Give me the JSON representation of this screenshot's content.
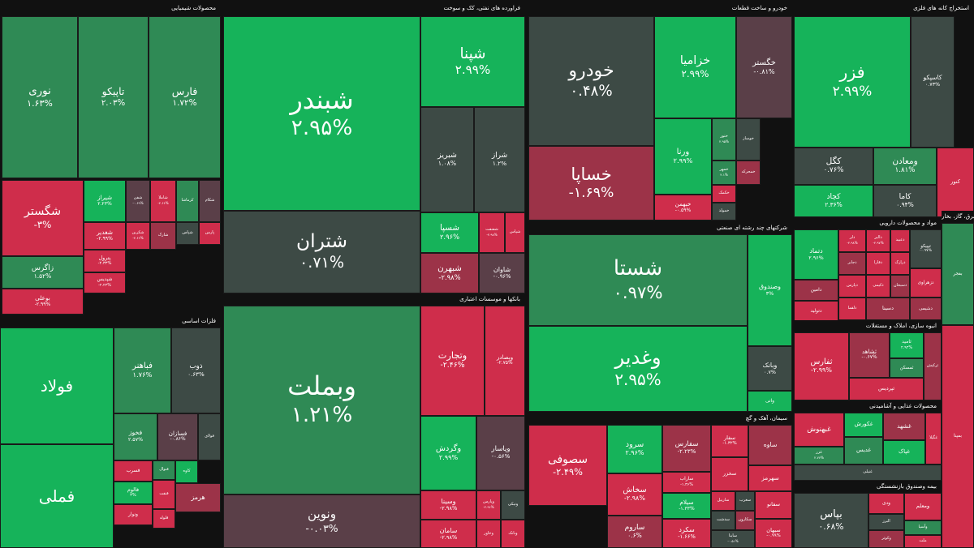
{
  "colors": {
    "strong_up": "#16b35a",
    "mid_up": "#2f8a55",
    "flat": "#3d4a45",
    "flat_down": "#5a3f48",
    "mid_down": "#9c3348",
    "strong_down": "#cf2d4b"
  },
  "chart_data": {
    "type": "treemap",
    "sectors": [
      {
        "name": "محصولات شیمیایی",
        "tiles": [
          {
            "symbol": "نوری",
            "change": "۱.۶۳%",
            "level": "mid_up"
          },
          {
            "symbol": "تاپیکو",
            "change": "۲.۰۳%",
            "level": "mid_up"
          },
          {
            "symbol": "فارس",
            "change": "۱.۷۲%",
            "level": "mid_up"
          },
          {
            "symbol": "شگستر",
            "change": "-۳%",
            "level": "strong_down"
          },
          {
            "symbol": "زاگرس",
            "change": "۱.۵۲%",
            "level": "mid_up"
          },
          {
            "symbol": "بوعلی",
            "change": "-۲.۹۹%",
            "level": "strong_down"
          },
          {
            "symbol": "شیراز",
            "change": "۲.۲۳%",
            "level": "strong_up"
          },
          {
            "symbol": "شغدیر",
            "change": "-۲.۹۹%",
            "level": "strong_down"
          },
          {
            "symbol": "پترول",
            "change": "-۲.۳۳%",
            "level": "strong_down"
          },
          {
            "symbol": "شپدیس",
            "change": "-۲.۲۳%",
            "level": "strong_down"
          },
          {
            "symbol": "شفن",
            "change": "-۰.۶۹%",
            "level": "flat_down"
          },
          {
            "symbol": "شکربن",
            "change": "-۲.۶۶%",
            "level": "strong_down"
          },
          {
            "symbol": "شاملا",
            "change": "-۲.۶۶%",
            "level": "strong_down"
          },
          {
            "symbol": "کرماشا",
            "change": "",
            "level": "mid_up"
          },
          {
            "symbol": "شکام",
            "change": "",
            "level": "flat_down"
          },
          {
            "symbol": "شپاس",
            "change": "",
            "level": "flat"
          },
          {
            "symbol": "پارس",
            "change": "",
            "level": "strong_down"
          },
          {
            "symbol": "شارک",
            "change": "",
            "level": "mid_down"
          }
        ]
      },
      {
        "name": "فراورده های نفتی، کک و سوخت",
        "tiles": [
          {
            "symbol": "شبندر",
            "change": "۲.۹۵%",
            "level": "strong_up"
          },
          {
            "symbol": "شپنا",
            "change": "۲.۹۹%",
            "level": "strong_up"
          },
          {
            "symbol": "شتران",
            "change": "۰.۷۱%",
            "level": "flat"
          },
          {
            "symbol": "شبریز",
            "change": "۱.۰۸%",
            "level": "flat"
          },
          {
            "symbol": "شراز",
            "change": "۱.۲%",
            "level": "flat"
          },
          {
            "symbol": "شسپا",
            "change": "۲.۹۶%",
            "level": "strong_up"
          },
          {
            "symbol": "شفنفت",
            "change": "-۲.۹۸%",
            "level": "strong_down"
          },
          {
            "symbol": "شپاس",
            "change": "",
            "level": "strong_down"
          },
          {
            "symbol": "شبهرن",
            "change": "-۲.۹۸%",
            "level": "mid_down"
          },
          {
            "symbol": "شاوان",
            "change": "-۰.۹۶%",
            "level": "flat_down"
          }
        ]
      },
      {
        "name": "خودرو و ساخت قطعات",
        "tiles": [
          {
            "symbol": "خودرو",
            "change": "۰.۴۸%",
            "level": "flat"
          },
          {
            "symbol": "خزامیا",
            "change": "۲.۹۹%",
            "level": "strong_up"
          },
          {
            "symbol": "خگستر",
            "change": "-۰.۸۱%",
            "level": "flat_down"
          },
          {
            "symbol": "خساپا",
            "change": "-۱.۶۹%",
            "level": "mid_down"
          },
          {
            "symbol": "ورنا",
            "change": "۲.۹۹%",
            "level": "strong_up"
          },
          {
            "symbol": "ختور",
            "change": "۲.۹۵%",
            "level": "mid_up"
          },
          {
            "symbol": "خوساز",
            "change": "",
            "level": "flat"
          },
          {
            "symbol": "خمهر",
            "change": "۲.۱%",
            "level": "mid_up"
          },
          {
            "symbol": "خمحرکه",
            "change": "",
            "level": "mid_down"
          },
          {
            "symbol": "خکمک",
            "change": "",
            "level": "strong_down"
          },
          {
            "symbol": "خبهمن",
            "change": "-۰.۵۹%",
            "level": "strong_down"
          },
          {
            "symbol": "خمولد",
            "change": "",
            "level": "flat"
          }
        ]
      },
      {
        "name": "استخراج کانه های فلزی",
        "tiles": [
          {
            "symbol": "فزر",
            "change": "۲.۹۹%",
            "level": "strong_up"
          },
          {
            "symbol": "کاسپکو",
            "change": "۰.۷۳%",
            "level": "flat"
          },
          {
            "symbol": "کگل",
            "change": "۰.۷۶%",
            "level": "flat"
          },
          {
            "symbol": "ومعادن",
            "change": "۱.۸۱%",
            "level": "mid_up"
          },
          {
            "symbol": "کچاد",
            "change": "۲.۳۶%",
            "level": "strong_up"
          },
          {
            "symbol": "کاما",
            "change": "۰.۹۴%",
            "level": "flat"
          },
          {
            "symbol": "کنور",
            "change": "",
            "level": "strong_down"
          }
        ]
      },
      {
        "name": "فلزات اساسی",
        "tiles": [
          {
            "symbol": "فولاد",
            "change": "",
            "level": "strong_up"
          },
          {
            "symbol": "فباهنر",
            "change": "۱.۷۶%",
            "level": "mid_up"
          },
          {
            "symbol": "ذوب",
            "change": "۰.۶۳%",
            "level": "flat"
          },
          {
            "symbol": "فملی",
            "change": "",
            "level": "strong_up"
          },
          {
            "symbol": "فخوز",
            "change": "۲.۵۷%",
            "level": "mid_up"
          },
          {
            "symbol": "فسازان",
            "change": "-۰.۸۶%",
            "level": "flat_down"
          },
          {
            "symbol": "فولای",
            "change": "",
            "level": "flat"
          },
          {
            "symbol": "فسرب",
            "change": "",
            "level": "strong_down"
          },
          {
            "symbol": "فنوال",
            "change": "",
            "level": "mid_up"
          },
          {
            "symbol": "کاوه",
            "change": "",
            "level": "strong_up"
          },
          {
            "symbol": "فالوم",
            "change": "۳%",
            "level": "strong_up"
          },
          {
            "symbol": "ونوار",
            "change": "",
            "level": "strong_down"
          },
          {
            "symbol": "فنفت",
            "change": "",
            "level": "strong_down"
          },
          {
            "symbol": "فلوله",
            "change": "",
            "level": "strong_down"
          },
          {
            "symbol": "هرمز",
            "change": "",
            "level": "mid_down"
          }
        ]
      },
      {
        "name": "بانکها و موسسات اعتباری",
        "tiles": [
          {
            "symbol": "وبملت",
            "change": "۱.۲۱%",
            "level": "mid_up"
          },
          {
            "symbol": "وتجارت",
            "change": "-۲.۴۶%",
            "level": "strong_down"
          },
          {
            "symbol": "وبصادر",
            "change": "-۲.۷۵%",
            "level": "strong_down"
          },
          {
            "symbol": "ونوین",
            "change": "-۰.۰۳%",
            "level": "flat_down"
          },
          {
            "symbol": "وگردش",
            "change": "۲.۹۹%",
            "level": "strong_up"
          },
          {
            "symbol": "وپاسار",
            "change": "-۰.۵۶%",
            "level": "flat_down"
          },
          {
            "symbol": "وسینا",
            "change": "-۲.۹۸%",
            "level": "strong_down"
          },
          {
            "symbol": "وپارس",
            "change": "-۲.۹۶%",
            "level": "strong_down"
          },
          {
            "symbol": "ونیکی",
            "change": "",
            "level": "flat"
          },
          {
            "symbol": "سامان",
            "change": "-۲.۹۸%",
            "level": "strong_down"
          },
          {
            "symbol": "وخاور",
            "change": "",
            "level": "strong_down"
          },
          {
            "symbol": "وبانک",
            "change": "",
            "level": "strong_down"
          }
        ]
      },
      {
        "name": "شرکتهای چند رشته ای صنعتی",
        "tiles": [
          {
            "symbol": "شستا",
            "change": "۰.۹۷%",
            "level": "mid_up"
          },
          {
            "symbol": "وصندوق",
            "change": "۳%",
            "level": "strong_up"
          },
          {
            "symbol": "وغدیر",
            "change": "۲.۹۵%",
            "level": "strong_up"
          },
          {
            "symbol": "وبانک",
            "change": "۰.۷%",
            "level": "flat"
          },
          {
            "symbol": "واتی",
            "change": "",
            "level": "strong_up"
          }
        ]
      },
      {
        "name": "سیمان، آهک و گچ",
        "tiles": [
          {
            "symbol": "سصوفی",
            "change": "-۲.۴۹%",
            "level": "strong_down"
          },
          {
            "symbol": "سرود",
            "change": "۲.۹۶%",
            "level": "strong_up"
          },
          {
            "symbol": "سخاش",
            "change": "-۲.۹۸%",
            "level": "strong_down"
          },
          {
            "symbol": "ساروم",
            "change": "۰.۶%",
            "level": "mid_down"
          },
          {
            "symbol": "سفارس",
            "change": "-۲.۲۳%",
            "level": "mid_down"
          },
          {
            "symbol": "ساراب",
            "change": "-۱.۳۶%",
            "level": "strong_down"
          },
          {
            "symbol": "سفار",
            "change": "-۱.۳۲%",
            "level": "strong_down"
          },
          {
            "symbol": "سخزر",
            "change": "",
            "level": "strong_down"
          },
          {
            "symbol": "ساوه",
            "change": "",
            "level": "mid_down"
          },
          {
            "symbol": "سهرمز",
            "change": "",
            "level": "strong_down"
          },
          {
            "symbol": "سیلام",
            "change": "-۱.۳۳%",
            "level": "strong_up"
          },
          {
            "symbol": "سکرد",
            "change": "-۱.۶۶%",
            "level": "strong_down"
          },
          {
            "symbol": "ساربیل",
            "change": "",
            "level": "strong_down"
          },
          {
            "symbol": "سغرب",
            "change": "",
            "level": "flat"
          },
          {
            "symbol": "سفانو",
            "change": "",
            "level": "strong_down"
          },
          {
            "symbol": "سدشت",
            "change": "",
            "level": "flat"
          },
          {
            "symbol": "سکارون",
            "change": "",
            "level": "mid_down"
          },
          {
            "symbol": "ساینا",
            "change": "-۰.۵۱%",
            "level": "flat"
          },
          {
            "symbol": "سبهان",
            "change": "-۰.۹۹%",
            "level": "strong_down"
          }
        ]
      },
      {
        "name": "مواد و محصولات دارویی",
        "tiles": [
          {
            "symbol": "دتماد",
            "change": "۲.۹۶%",
            "level": "strong_up"
          },
          {
            "symbol": "دلر",
            "change": "-۲.۹۸%",
            "level": "strong_down"
          },
          {
            "symbol": "دالبر",
            "change": "-۲.۹۷%",
            "level": "strong_down"
          },
          {
            "symbol": "دعبید",
            "change": "",
            "level": "strong_down"
          },
          {
            "symbol": "تیپیکو",
            "change": "-۰.۹۷%",
            "level": "flat"
          },
          {
            "symbol": "دجابر",
            "change": "",
            "level": "mid_down"
          },
          {
            "symbol": "دفارا",
            "change": "",
            "level": "strong_down"
          },
          {
            "symbol": "درازک",
            "change": "",
            "level": "strong_down"
          },
          {
            "symbol": "دپارس",
            "change": "",
            "level": "strong_down"
          },
          {
            "symbol": "دکیمی",
            "change": "",
            "level": "strong_down"
          },
          {
            "symbol": "دسبحان",
            "change": "",
            "level": "mid_down"
          },
          {
            "symbol": "دامین",
            "change": "",
            "level": "mid_down"
          },
          {
            "symbol": "دزهراوی",
            "change": "",
            "level": "strong_down"
          },
          {
            "symbol": "دلقما",
            "change": "",
            "level": "strong_down"
          },
          {
            "symbol": "دسینا",
            "change": "",
            "level": "mid_down"
          },
          {
            "symbol": "دشیمی",
            "change": "",
            "level": "mid_down"
          },
          {
            "symbol": "دتولید",
            "change": "",
            "level": "strong_down"
          },
          {
            "symbol": "دکپسول",
            "change": "",
            "level": "flat"
          }
        ]
      },
      {
        "name": "انبوه سازی، املاک و مستغلات",
        "tiles": [
          {
            "symbol": "ثفارس",
            "change": "-۲.۹۹%",
            "level": "strong_down"
          },
          {
            "symbol": "ثشاهد",
            "change": "-۰.۶۷%",
            "level": "mid_down"
          },
          {
            "symbol": "ثامید",
            "change": "۲.۹۴%",
            "level": "strong_up"
          },
          {
            "symbol": "ثمسکن",
            "change": "",
            "level": "mid_up"
          },
          {
            "symbol": "ثرکیش",
            "change": "",
            "level": "mid_down"
          },
          {
            "symbol": "ثپردیس",
            "change": "",
            "level": "strong_down"
          }
        ]
      },
      {
        "name": "محصولات غذایی و آشامیدنی",
        "tiles": [
          {
            "symbol": "غبهنوش",
            "change": "",
            "level": "strong_down"
          },
          {
            "symbol": "غکورش",
            "change": "",
            "level": "strong_up"
          },
          {
            "symbol": "غزر",
            "change": "۲.۷۷%",
            "level": "mid_up"
          },
          {
            "symbol": "غدیس",
            "change": "",
            "level": "mid_up"
          },
          {
            "symbol": "غشهد",
            "change": "",
            "level": "mid_down"
          },
          {
            "symbol": "غپاک",
            "change": "",
            "level": "strong_up"
          },
          {
            "symbol": "غگیلا",
            "change": "",
            "level": "strong_down"
          },
          {
            "symbol": "غنیلی",
            "change": "",
            "level": "flat"
          }
        ]
      },
      {
        "name": "بیمه وصندوق بازنشستگی",
        "tiles": [
          {
            "symbol": "بپاس",
            "change": "۰.۶۸%",
            "level": "flat"
          },
          {
            "symbol": "ودی",
            "change": "",
            "level": "strong_down"
          },
          {
            "symbol": "البرز",
            "change": "",
            "level": "flat"
          },
          {
            "symbol": "وکوثر",
            "change": "",
            "level": "mid_down"
          },
          {
            "symbol": "ومعلم",
            "change": "",
            "level": "strong_down"
          },
          {
            "symbol": "وآسیا",
            "change": "",
            "level": "mid_up"
          },
          {
            "symbol": "ملت",
            "change": "",
            "level": "strong_down"
          }
        ]
      },
      {
        "name": "عرضه برق، گاز، بخار",
        "tiles": [
          {
            "symbol": "بفجر",
            "change": "",
            "level": "mid_up"
          },
          {
            "symbol": "بمپنا",
            "change": "",
            "level": "strong_down"
          }
        ]
      }
    ]
  }
}
